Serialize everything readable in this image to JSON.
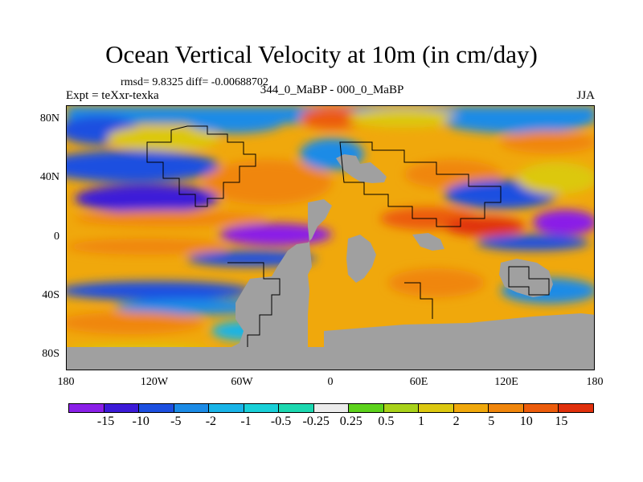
{
  "title": "Ocean Vertical Velocity at 10m (in cm/day)",
  "stats": "rmsd= 9.8325 diff= -0.00688702",
  "experiment": "Expt = teXxr-texka",
  "subtitle": "344_0_MaBP - 000_0_MaBP",
  "season": "JJA",
  "map": {
    "lon_range": [
      -180,
      180
    ],
    "lat_range": [
      -90,
      90
    ],
    "land_color": "#a0a0a0",
    "y_ticks": [
      {
        "label": "80N",
        "lat": 80
      },
      {
        "label": "40N",
        "lat": 40
      },
      {
        "label": "0",
        "lat": 0
      },
      {
        "label": "40S",
        "lat": -40
      },
      {
        "label": "80S",
        "lat": -80
      }
    ],
    "x_ticks": [
      {
        "label": "180",
        "lon": -180
      },
      {
        "label": "120W",
        "lon": -120
      },
      {
        "label": "60W",
        "lon": -60
      },
      {
        "label": "0",
        "lon": 0
      },
      {
        "label": "60E",
        "lon": 60
      },
      {
        "label": "120E",
        "lon": 120
      },
      {
        "label": "180",
        "lon": 180
      }
    ]
  },
  "colorbar": {
    "colors": [
      "#8a1fe8",
      "#3c1ad8",
      "#1c4fe0",
      "#1b8be6",
      "#19b4e8",
      "#19d0d8",
      "#1cd8b0",
      "#ececec",
      "#5cd21c",
      "#a8d21a",
      "#dcc810",
      "#f0a80c",
      "#f0860c",
      "#ec5c0c",
      "#e0300c"
    ],
    "labels": [
      "-15",
      "-10",
      "-5",
      "-2",
      "-1",
      "-0.5",
      "-0.25",
      "0.25",
      "0.5",
      "1",
      "2",
      "5",
      "10",
      "15"
    ]
  }
}
